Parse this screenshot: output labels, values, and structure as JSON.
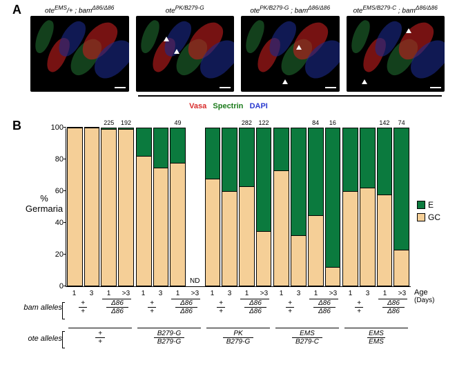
{
  "panelA": {
    "label": "A",
    "images": [
      {
        "title": "ote^{EMS}/+ ; bam^{Δ86/Δ86}",
        "arrowheads": []
      },
      {
        "title": "ote^{PK/B279-G}",
        "arrowheads": [
          [
            40,
            30
          ],
          [
            55,
            48
          ]
        ]
      },
      {
        "title": "ote^{PK/B279-G} ; bam^{Δ86/Δ86}",
        "arrowheads": [
          [
            80,
            42
          ],
          [
            60,
            92
          ]
        ]
      },
      {
        "title": "ote^{EMS/B279-C} ; bam^{Δ86/Δ86}",
        "arrowheads": [
          [
            86,
            18
          ],
          [
            22,
            92
          ]
        ]
      }
    ],
    "stain": {
      "r": "Vasa",
      "g": "Spectrin",
      "b": "DAPI"
    },
    "micro_bg": "#000000",
    "blob_red": "#c41e1e",
    "blob_green": "#1f6b2f",
    "blob_blue": "#1a2a8a"
  },
  "panelB": {
    "label": "B",
    "ylabel_top": "%",
    "ylabel_bot": "Germaria",
    "yticks": [
      0,
      20,
      40,
      60,
      80,
      100
    ],
    "colors": {
      "E": "#0b7a3e",
      "GC": "#f5cf97",
      "stroke": "#000000"
    },
    "legend": [
      {
        "key": "E",
        "label": "E"
      },
      {
        "key": "GC",
        "label": "GC"
      }
    ],
    "age_label": "Age",
    "days_label": "(Days)",
    "row_labels": {
      "bam": "bam alleles",
      "ote": "ote alleles"
    },
    "groups": [
      {
        "ote_top": "+",
        "ote_bot": "+",
        "bars": [
          {
            "day": "1",
            "bam": "+/+",
            "gc": 100,
            "e": 0
          },
          {
            "day": "3",
            "bam": "+/+",
            "gc": 100,
            "e": 0
          },
          {
            "day": "1",
            "bam": "Δ86/Δ86",
            "gc": 99,
            "e": 1,
            "n": "225"
          },
          {
            "day": ">3",
            "bam": "Δ86/Δ86",
            "gc": 99,
            "e": 1,
            "n": "192"
          }
        ]
      },
      {
        "ote_top": "B279-G",
        "ote_bot": "B279-G",
        "bars": [
          {
            "day": "1",
            "bam": "+/+",
            "gc": 82,
            "e": 18
          },
          {
            "day": "3",
            "bam": "+/+",
            "gc": 75,
            "e": 25
          },
          {
            "day": "1",
            "bam": "Δ86/Δ86",
            "gc": 78,
            "e": 22,
            "n": "49"
          },
          {
            "day": ">3",
            "bam": "Δ86/Δ86",
            "nd": "ND"
          }
        ]
      },
      {
        "ote_top": "PK",
        "ote_bot": "B279-G",
        "bars": [
          {
            "day": "1",
            "bam": "+/+",
            "gc": 68,
            "e": 32
          },
          {
            "day": "3",
            "bam": "+/+",
            "gc": 60,
            "e": 40
          },
          {
            "day": "1",
            "bam": "Δ86/Δ86",
            "gc": 63,
            "e": 37,
            "n": "282"
          },
          {
            "day": ">3",
            "bam": "Δ86/Δ86",
            "gc": 35,
            "e": 65,
            "n": "122"
          }
        ]
      },
      {
        "ote_top": "EMS",
        "ote_bot": "B279-C",
        "bars": [
          {
            "day": "1",
            "bam": "+/+",
            "gc": 73,
            "e": 27
          },
          {
            "day": "3",
            "bam": "+/+",
            "gc": 32,
            "e": 68
          },
          {
            "day": "1",
            "bam": "Δ86/Δ86",
            "gc": 45,
            "e": 55,
            "n": "84"
          },
          {
            "day": ">3",
            "bam": "Δ86/Δ86",
            "gc": 12,
            "e": 88,
            "n": "16"
          }
        ]
      },
      {
        "ote_top": "EMS",
        "ote_bot": "EMS",
        "bars": [
          {
            "day": "1",
            "bam": "+/+",
            "gc": 60,
            "e": 40
          },
          {
            "day": "3",
            "bam": "+/+",
            "gc": 62,
            "e": 38
          },
          {
            "day": "1",
            "bam": "Δ86/Δ86",
            "gc": 58,
            "e": 42,
            "n": "142"
          },
          {
            "day": ">3",
            "bam": "Δ86/Δ86",
            "gc": 23,
            "e": 77,
            "n": "74"
          }
        ]
      }
    ]
  }
}
